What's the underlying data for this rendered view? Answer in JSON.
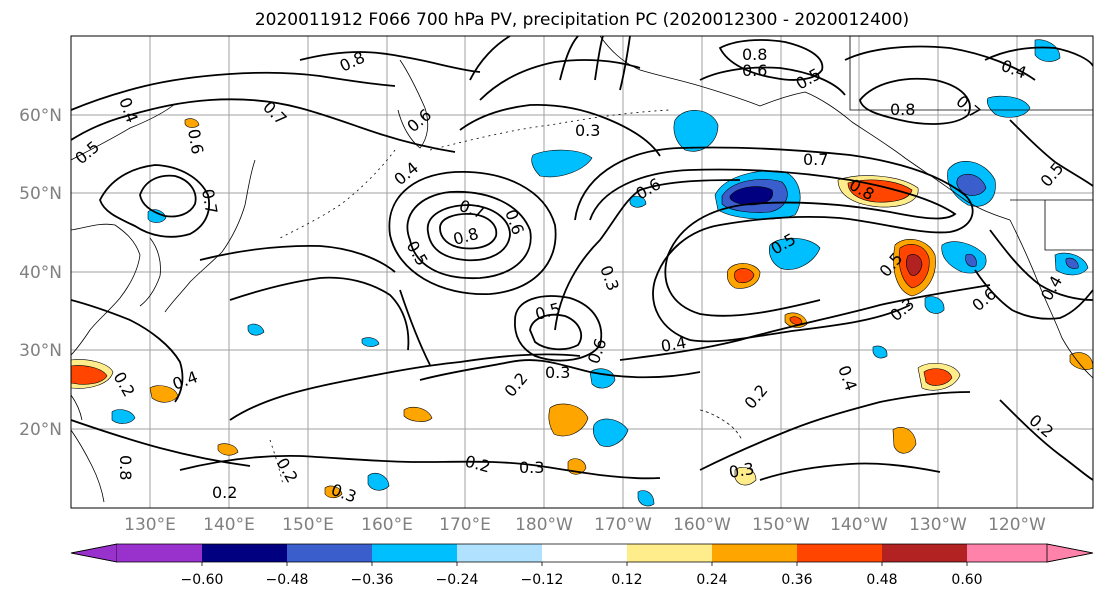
{
  "figure": {
    "title": "2020011912 F066 700 hPa PV, precipitation PC (2020012300 - 2020012400)"
  },
  "map": {
    "lat_labels": [
      "60°N",
      "50°N",
      "40°N",
      "30°N",
      "20°N"
    ],
    "lon_labels": [
      "130°E",
      "140°E",
      "150°E",
      "160°E",
      "170°E",
      "180°W",
      "170°W",
      "160°W",
      "150°W",
      "140°W",
      "130°W",
      "120°W"
    ],
    "contour_labels": [
      "0.8",
      "0.4",
      "0.5",
      "0.7",
      "0.6",
      "0.7",
      "0.3",
      "0.6",
      "0.7",
      "0.8",
      "0.6",
      "0.5",
      "0.3",
      "0.5",
      "0.4",
      "0.2",
      "0.3",
      "0.2",
      "0.3",
      "0.2",
      "0.3",
      "0.2",
      "0.4",
      "0.2",
      "0.4",
      "0.3",
      "0.6",
      "0.5",
      "0.8",
      "0.8",
      "0.6",
      "0.5",
      "0.4",
      "0.7",
      "0.5",
      "0.7",
      "0.8",
      "0.6",
      "0.4",
      "0.3",
      "0.2",
      "0.2",
      "0.8",
      "0.6",
      "0.5",
      "0.4"
    ],
    "colors": {
      "land": "#000000",
      "contour": "#000000",
      "grid": "#a0a0a0"
    }
  },
  "colorbar": {
    "tick_labels": [
      "−0.60",
      "−0.48",
      "−0.36",
      "−0.24",
      "−0.12",
      "0.12",
      "0.24",
      "0.36",
      "0.48",
      "0.60"
    ],
    "bins": [
      {
        "color": "#9932cc"
      },
      {
        "color": "#000080"
      },
      {
        "color": "#3a5fcd"
      },
      {
        "color": "#00bfff"
      },
      {
        "color": "#b0e2ff"
      },
      {
        "color": "#ffffff"
      },
      {
        "color": "#ffec8b"
      },
      {
        "color": "#ffa500"
      },
      {
        "color": "#ff4500"
      },
      {
        "color": "#b22222"
      },
      {
        "color": "#ff82ab"
      }
    ]
  }
}
